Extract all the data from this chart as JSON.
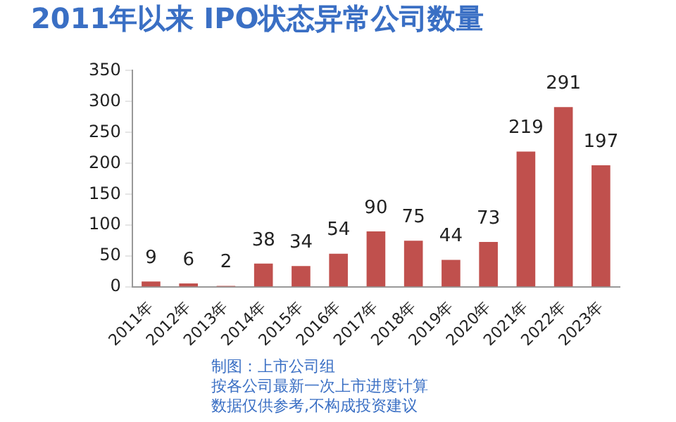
{
  "chart_data": {
    "type": "bar",
    "title": "2011年以来 IPO状态异常公司数量",
    "categories": [
      "2011年",
      "2012年",
      "2013年",
      "2014年",
      "2015年",
      "2016年",
      "2017年",
      "2018年",
      "2019年",
      "2020年",
      "2021年",
      "2022年",
      "2023年"
    ],
    "values": [
      9,
      6,
      2,
      38,
      34,
      54,
      90,
      75,
      44,
      73,
      219,
      291,
      197
    ],
    "color": "#c0504d",
    "ylim": [
      0,
      350
    ],
    "yticks": [
      0,
      50,
      100,
      150,
      200,
      250,
      300,
      350
    ],
    "grid": false,
    "legend": false,
    "data_labels": true,
    "annotations": [
      "制图：上市公司组",
      "按各公司最新一次上市进度计算",
      "数据仅供参考,不构成投资建议"
    ]
  }
}
